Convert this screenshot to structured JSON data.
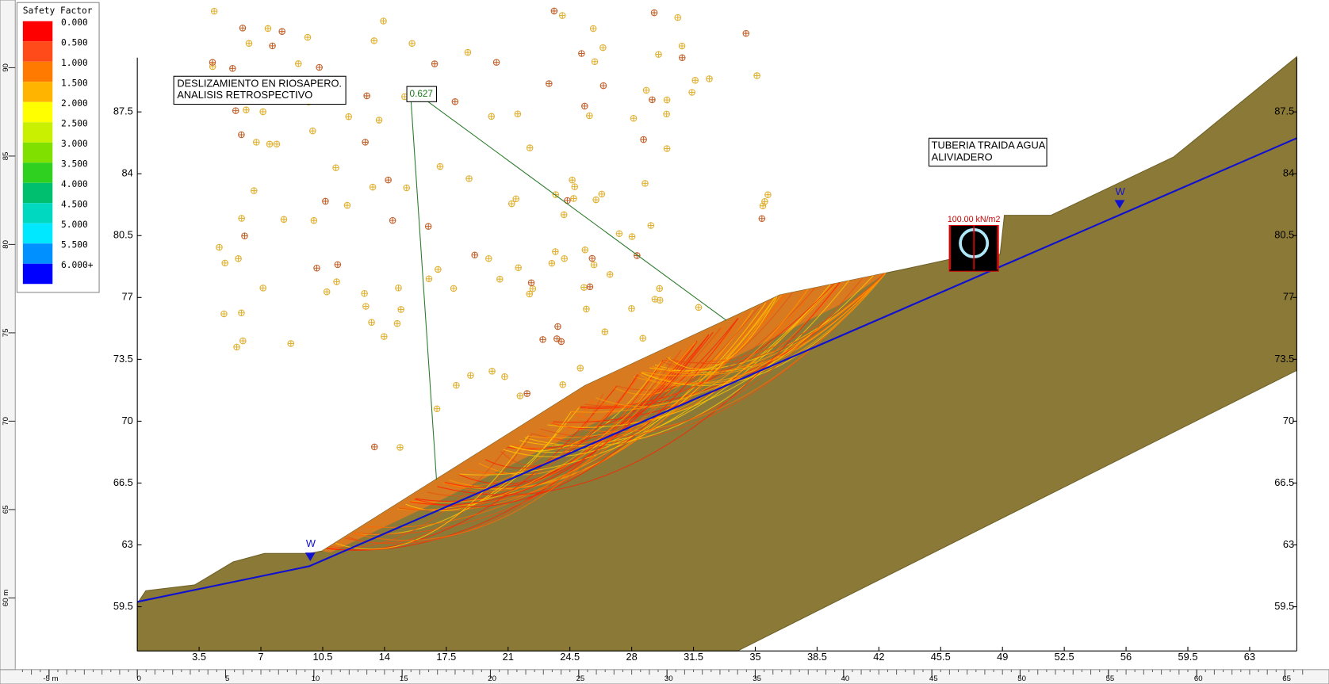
{
  "legend": {
    "title": "Safety Factor",
    "items": [
      {
        "label": "0.000",
        "color": "#ff0000"
      },
      {
        "label": "0.500",
        "color": "#ff4a1a"
      },
      {
        "label": "1.000",
        "color": "#ff7a00"
      },
      {
        "label": "1.500",
        "color": "#ffb400"
      },
      {
        "label": "2.000",
        "color": "#ffff00"
      },
      {
        "label": "2.500",
        "color": "#c8f000"
      },
      {
        "label": "3.000",
        "color": "#80e000"
      },
      {
        "label": "3.500",
        "color": "#30d020"
      },
      {
        "label": "4.000",
        "color": "#00c070"
      },
      {
        "label": "4.500",
        "color": "#00d8c0"
      },
      {
        "label": "5.000",
        "color": "#00e8ff"
      },
      {
        "label": "5.500",
        "color": "#0090ff"
      },
      {
        "label": "6.000+",
        "color": "#0000ff"
      }
    ]
  },
  "plot": {
    "xlim": [
      0,
      65.67
    ],
    "ylim": [
      57.0,
      90.57
    ],
    "xticks": [
      3.5,
      7,
      10.5,
      14,
      17.5,
      21,
      24.5,
      28,
      31.5,
      35,
      38.5,
      42,
      45.5,
      49,
      52.5,
      56,
      59.5,
      63
    ],
    "yticks": [
      59.5,
      63,
      66.5,
      70,
      73.5,
      77,
      80.5,
      84,
      87.5
    ]
  },
  "rulers": {
    "x": [
      {
        "value": -5,
        "label": "-5 m"
      },
      0,
      5,
      10,
      15,
      20,
      25,
      30,
      35,
      40,
      45,
      50,
      55,
      60,
      65
    ],
    "y": [
      {
        "value": 60,
        "label": "60 m"
      },
      65,
      70,
      75,
      80,
      85,
      90
    ]
  },
  "annotations": {
    "title_box": [
      "DESLIZAMIENTO EN RIOSAPERO.",
      "ANALISIS RETROSPECTIVO"
    ],
    "pipe_box": [
      "TUBERIA TRAIDA AGUA",
      "ALIVIADERO"
    ],
    "min_factor": "0.627",
    "load": "100.00 kN/m2",
    "water_left": "W",
    "water_right": "W"
  }
}
